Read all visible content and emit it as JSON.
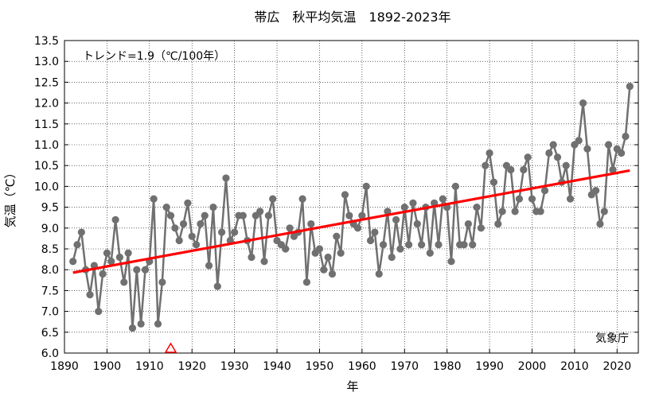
{
  "chart_data": {
    "type": "line",
    "title": "帯広　秋平均気温　1892-2023年",
    "xlabel": "年",
    "ylabel": "気温（℃）",
    "trend_label": "トレンド=1.9（℃/100年）",
    "source": "気象庁",
    "xlim": [
      1890,
      2025
    ],
    "ylim": [
      6.0,
      13.5
    ],
    "x_ticks": [
      "1890",
      "1900",
      "1910",
      "1920",
      "1930",
      "1940",
      "1950",
      "1960",
      "1970",
      "1980",
      "1990",
      "2000",
      "2010",
      "2020"
    ],
    "y_ticks": [
      "6.0",
      "6.5",
      "7.0",
      "7.5",
      "8.0",
      "8.5",
      "9.0",
      "9.5",
      "10.0",
      "10.5",
      "11.0",
      "11.5",
      "12.0",
      "12.5",
      "13.0",
      "13.5"
    ],
    "grid": true,
    "series": [
      {
        "color": "#707070",
        "x": [
          1892,
          1893,
          1894,
          1895,
          1896,
          1897,
          1898,
          1899,
          1900,
          1901,
          1902,
          1903,
          1904,
          1905,
          1906,
          1907,
          1908,
          1909,
          1910,
          1911,
          1912,
          1913,
          1914,
          1915,
          1916,
          1917,
          1918,
          1919,
          1920,
          1921,
          1922,
          1923,
          1924,
          1925,
          1926,
          1927,
          1928,
          1929,
          1930,
          1931,
          1932,
          1933,
          1934,
          1935,
          1936,
          1937,
          1938,
          1939,
          1940,
          1941,
          1942,
          1943,
          1944,
          1945,
          1946,
          1947,
          1948,
          1949,
          1950,
          1951,
          1952,
          1953,
          1954,
          1955,
          1956,
          1957,
          1958,
          1959,
          1960,
          1961,
          1962,
          1963,
          1964,
          1965,
          1966,
          1967,
          1968,
          1969,
          1970,
          1971,
          1972,
          1973,
          1974,
          1975,
          1976,
          1977,
          1978,
          1979,
          1980,
          1981,
          1982,
          1983,
          1984,
          1985,
          1986,
          1987,
          1988,
          1989,
          1990,
          1991,
          1992,
          1993,
          1994,
          1995,
          1996,
          1997,
          1998,
          1999,
          2000,
          2001,
          2002,
          2003,
          2004,
          2005,
          2006,
          2007,
          2008,
          2009,
          2010,
          2011,
          2012,
          2013,
          2014,
          2015,
          2016,
          2017,
          2018,
          2019,
          2020,
          2021,
          2022,
          2023
        ],
        "values": [
          8.2,
          8.6,
          8.9,
          8.0,
          7.4,
          8.1,
          7.0,
          7.9,
          8.4,
          8.2,
          9.2,
          8.3,
          7.7,
          8.4,
          6.6,
          8.0,
          6.7,
          8.0,
          8.2,
          9.7,
          6.7,
          7.7,
          9.5,
          9.3,
          9.0,
          8.7,
          9.1,
          9.6,
          8.8,
          8.6,
          9.1,
          9.3,
          8.1,
          9.5,
          7.6,
          8.9,
          10.2,
          8.7,
          8.9,
          9.3,
          9.3,
          8.7,
          8.3,
          9.3,
          9.4,
          8.2,
          9.3,
          9.7,
          8.7,
          8.6,
          8.5,
          9.0,
          8.8,
          8.9,
          9.7,
          7.7,
          9.1,
          8.4,
          8.5,
          8.0,
          8.3,
          7.9,
          8.8,
          8.4,
          9.8,
          9.3,
          9.1,
          9.0,
          9.3,
          10.0,
          8.7,
          8.9,
          7.9,
          8.6,
          9.4,
          8.3,
          9.2,
          8.5,
          9.5,
          8.6,
          9.6,
          9.1,
          8.6,
          9.5,
          8.4,
          9.6,
          8.6,
          9.7,
          9.5,
          8.2,
          10.0,
          8.6,
          8.6,
          9.1,
          8.6,
          9.5,
          9.0,
          10.5,
          10.8,
          10.1,
          9.1,
          9.4,
          10.5,
          10.4,
          9.4,
          9.7,
          10.4,
          10.7,
          9.7,
          9.4,
          9.4,
          9.9,
          10.8,
          11.0,
          10.7,
          10.1,
          10.5,
          9.7,
          11.0,
          11.1,
          12.0,
          10.9,
          9.8,
          9.9,
          9.1,
          9.4,
          11.0,
          10.4,
          10.9,
          10.8,
          11.2,
          12.4
        ]
      }
    ],
    "trend_line": {
      "color": "#ff0000",
      "x": [
        1892,
        2023
      ],
      "values": [
        7.93,
        10.38
      ]
    },
    "markers": [
      {
        "symbol": "triangle",
        "color": "#ff0000",
        "x": 1915,
        "y": 6.0
      }
    ]
  }
}
